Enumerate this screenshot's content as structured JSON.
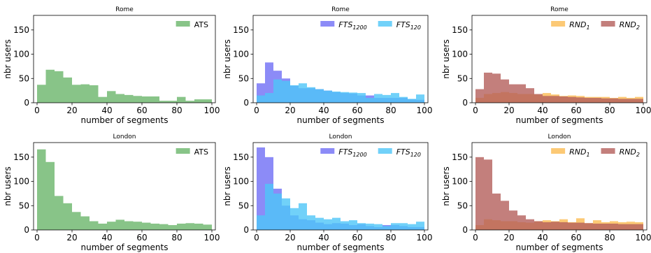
{
  "chart_data": [
    {
      "type": "bar",
      "title": "Rome",
      "xlabel": "number of segments",
      "ylabel": "nbr users",
      "xlim": [
        0,
        100
      ],
      "ylim": [
        0,
        180
      ],
      "xticks": [
        0,
        20,
        40,
        60,
        80,
        100
      ],
      "yticks": [
        0,
        50,
        100,
        150
      ],
      "bin_edges": [
        0,
        5,
        10,
        15,
        20,
        25,
        30,
        35,
        40,
        45,
        50,
        55,
        60,
        65,
        70,
        75,
        80,
        85,
        90,
        95,
        100
      ],
      "legend_position": "top-right",
      "series": [
        {
          "name": "ATS",
          "name_sub": "",
          "color": "#6ab56a",
          "values": [
            37,
            68,
            65,
            52,
            37,
            38,
            36,
            12,
            24,
            18,
            16,
            14,
            13,
            13,
            4,
            4,
            12,
            4,
            7,
            7
          ]
        }
      ]
    },
    {
      "type": "bar",
      "title": "Rome",
      "xlabel": "number of segments",
      "ylabel": "nbr users",
      "xlim": [
        0,
        100
      ],
      "ylim": [
        0,
        180
      ],
      "xticks": [
        0,
        20,
        40,
        60,
        80,
        100
      ],
      "yticks": [
        0,
        50,
        100,
        150
      ],
      "bin_edges": [
        0,
        5,
        10,
        15,
        20,
        25,
        30,
        35,
        40,
        45,
        50,
        55,
        60,
        65,
        70,
        75,
        80,
        85,
        90,
        95,
        100
      ],
      "legend_position": "top-right",
      "series": [
        {
          "name": "FTS",
          "name_sub": "1200",
          "color": "#6f6ef5",
          "values": [
            40,
            83,
            66,
            50,
            35,
            30,
            30,
            28,
            25,
            22,
            20,
            19,
            15,
            15,
            10,
            10,
            10,
            10,
            7,
            6
          ]
        },
        {
          "name": "FTS",
          "name_sub": "120",
          "color": "#4ec5f7",
          "values": [
            15,
            20,
            48,
            45,
            36,
            40,
            32,
            28,
            25,
            23,
            22,
            21,
            20,
            10,
            18,
            16,
            20,
            12,
            8,
            17
          ]
        }
      ]
    },
    {
      "type": "bar",
      "title": "Rome",
      "xlabel": "number of segments",
      "ylabel": "nbr users",
      "xlim": [
        0,
        100
      ],
      "ylim": [
        0,
        180
      ],
      "xticks": [
        0,
        20,
        40,
        60,
        80,
        100
      ],
      "yticks": [
        0,
        50,
        100,
        150
      ],
      "bin_edges": [
        0,
        5,
        10,
        15,
        20,
        25,
        30,
        35,
        40,
        45,
        50,
        55,
        60,
        65,
        70,
        75,
        80,
        85,
        90,
        95,
        100
      ],
      "legend_position": "top-right",
      "series": [
        {
          "name": "RND",
          "name_sub": "1",
          "color": "#fbbc52",
          "values": [
            10,
            18,
            20,
            22,
            20,
            18,
            18,
            17,
            20,
            17,
            14,
            15,
            14,
            12,
            12,
            12,
            10,
            12,
            10,
            12
          ]
        },
        {
          "name": "RND",
          "name_sub": "2",
          "color": "#b45f5b",
          "values": [
            28,
            62,
            60,
            48,
            38,
            38,
            30,
            18,
            14,
            14,
            13,
            12,
            11,
            10,
            10,
            9,
            9,
            8,
            8,
            8
          ]
        }
      ]
    },
    {
      "type": "bar",
      "title": "London",
      "xlabel": "number of segments",
      "ylabel": "nbr users",
      "xlim": [
        0,
        100
      ],
      "ylim": [
        0,
        180
      ],
      "xticks": [
        0,
        20,
        40,
        60,
        80,
        100
      ],
      "yticks": [
        0,
        50,
        100,
        150
      ],
      "bin_edges": [
        0,
        5,
        10,
        15,
        20,
        25,
        30,
        35,
        40,
        45,
        50,
        55,
        60,
        65,
        70,
        75,
        80,
        85,
        90,
        95,
        100
      ],
      "legend_position": "top-right",
      "series": [
        {
          "name": "ATS",
          "name_sub": "",
          "color": "#6ab56a",
          "values": [
            166,
            140,
            70,
            55,
            37,
            28,
            18,
            13,
            17,
            21,
            18,
            17,
            15,
            13,
            12,
            10,
            13,
            14,
            13,
            11
          ]
        }
      ]
    },
    {
      "type": "bar",
      "title": "London",
      "xlabel": "number of segments",
      "ylabel": "nbr users",
      "xlim": [
        0,
        100
      ],
      "ylim": [
        0,
        180
      ],
      "xticks": [
        0,
        20,
        40,
        60,
        80,
        100
      ],
      "yticks": [
        0,
        50,
        100,
        150
      ],
      "bin_edges": [
        0,
        5,
        10,
        15,
        20,
        25,
        30,
        35,
        40,
        45,
        50,
        55,
        60,
        65,
        70,
        75,
        80,
        85,
        90,
        95,
        100
      ],
      "legend_position": "top-right",
      "series": [
        {
          "name": "FTS",
          "name_sub": "1200",
          "color": "#6f6ef5",
          "values": [
            170,
            150,
            85,
            50,
            30,
            22,
            20,
            15,
            12,
            14,
            13,
            10,
            12,
            8,
            6,
            10,
            10,
            8,
            6,
            6
          ]
        },
        {
          "name": "FTS",
          "name_sub": "120",
          "color": "#4ec5f7",
          "values": [
            30,
            95,
            75,
            65,
            45,
            55,
            30,
            25,
            22,
            25,
            18,
            20,
            14,
            13,
            12,
            8,
            14,
            14,
            12,
            17
          ]
        }
      ]
    },
    {
      "type": "bar",
      "title": "London",
      "xlabel": "number of segments",
      "ylabel": "nbr users",
      "xlim": [
        0,
        100
      ],
      "ylim": [
        0,
        180
      ],
      "xticks": [
        0,
        20,
        40,
        60,
        80,
        100
      ],
      "yticks": [
        0,
        50,
        100,
        150
      ],
      "bin_edges": [
        0,
        5,
        10,
        15,
        20,
        25,
        30,
        35,
        40,
        45,
        50,
        55,
        60,
        65,
        70,
        75,
        80,
        85,
        90,
        95,
        100
      ],
      "legend_position": "top-right",
      "series": [
        {
          "name": "RND",
          "name_sub": "1",
          "color": "#fbbc52",
          "values": [
            10,
            22,
            20,
            18,
            18,
            16,
            15,
            18,
            20,
            18,
            22,
            16,
            24,
            14,
            20,
            16,
            18,
            16,
            17,
            16
          ]
        },
        {
          "name": "RND",
          "name_sub": "2",
          "color": "#b45f5b",
          "values": [
            150,
            145,
            75,
            60,
            40,
            30,
            22,
            18,
            16,
            17,
            16,
            15,
            15,
            14,
            13,
            13,
            13,
            12,
            12,
            12
          ]
        }
      ]
    }
  ]
}
